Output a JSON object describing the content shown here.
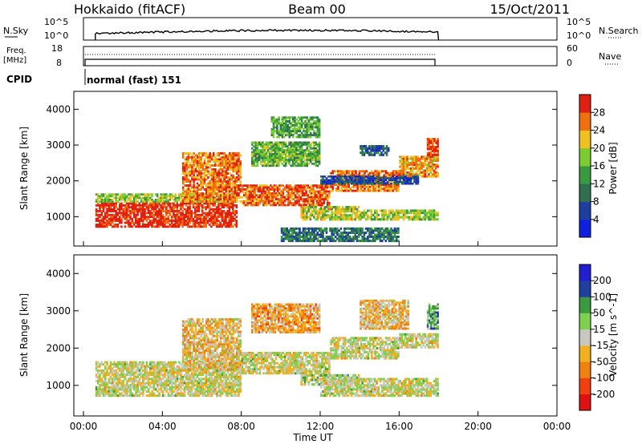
{
  "header": {
    "title_left": "Hokkaido (fitACF)",
    "title_center": "Beam 00",
    "title_right": "15/Oct/2011"
  },
  "sky_panel": {
    "label_left": "N.Sky",
    "label_right": "N.Search",
    "tick_top_left": "10^5",
    "tick_bottom_left": "10^0",
    "tick_top_right": "10^5",
    "tick_bottom_right": "10^0"
  },
  "freq_panel": {
    "label_left_1": "Freq.",
    "label_left_2": "[MHz]",
    "label_right": "Nave",
    "tick_top_left": "18",
    "tick_bottom_left": "8",
    "tick_top_right": "60",
    "tick_bottom_right": "0"
  },
  "cpid": {
    "label": "CPID",
    "value": "normal (fast) 151"
  },
  "x_axis": {
    "label": "Time UT",
    "ticks": [
      "00:00",
      "04:00",
      "08:00",
      "12:00",
      "16:00",
      "20:00",
      "00:00"
    ]
  },
  "colors": {
    "power_scale": [
      "#1020e0",
      "#1f3fa0",
      "#2f7050",
      "#3a9a40",
      "#7ccc30",
      "#f0c020",
      "#f07010",
      "#e02010"
    ],
    "velocity_scale": [
      "#e01010",
      "#f04010",
      "#f08010",
      "#f0b020",
      "#c8c8c0",
      "#80d050",
      "#3a9a40",
      "#2040a0",
      "#2020d0"
    ]
  },
  "chart_data": [
    {
      "type": "heatmap",
      "panel": "power",
      "ylabel": "Slant Range [km]",
      "xlabel": "",
      "x_range_hours": [
        0,
        24
      ],
      "ylim": [
        180,
        4500
      ],
      "yticks": [
        "1000",
        "2000",
        "3000",
        "4000"
      ],
      "colorbar_label": "Power [dB]",
      "colorbar_ticks": [
        "4",
        "8",
        "12",
        "16",
        "20",
        "24",
        "28"
      ],
      "regions": [
        {
          "t0": 0.6,
          "t1": 7.8,
          "r0": 700,
          "r1": 1400,
          "level": 0.95
        },
        {
          "t0": 0.6,
          "t1": 7.8,
          "r0": 1400,
          "r1": 1650,
          "level": 0.55
        },
        {
          "t0": 5.0,
          "t1": 8.0,
          "r0": 1400,
          "r1": 2800,
          "level": 0.8
        },
        {
          "t0": 8.0,
          "t1": 12.5,
          "r0": 1300,
          "r1": 1900,
          "level": 0.85
        },
        {
          "t0": 12.5,
          "t1": 16.0,
          "r0": 1700,
          "r1": 2300,
          "level": 0.8
        },
        {
          "t0": 16.0,
          "t1": 18.0,
          "r0": 2100,
          "r1": 2700,
          "level": 0.75
        },
        {
          "t0": 17.4,
          "t1": 18.0,
          "r0": 2700,
          "r1": 3200,
          "level": 0.9
        },
        {
          "t0": 8.5,
          "t1": 12.0,
          "r0": 2400,
          "r1": 3100,
          "level": 0.5
        },
        {
          "t0": 9.5,
          "t1": 12.0,
          "r0": 3200,
          "r1": 3800,
          "level": 0.45
        },
        {
          "t0": 14.0,
          "t1": 15.5,
          "r0": 2700,
          "r1": 3000,
          "level": 0.25
        },
        {
          "t0": 11.0,
          "t1": 14.0,
          "r0": 900,
          "r1": 1300,
          "level": 0.6
        },
        {
          "t0": 14.0,
          "t1": 18.0,
          "r0": 900,
          "r1": 1200,
          "level": 0.55
        },
        {
          "t0": 12.0,
          "t1": 17.0,
          "r0": 1900,
          "r1": 2150,
          "level": 0.2
        },
        {
          "t0": 10.0,
          "t1": 16.0,
          "r0": 300,
          "r1": 700,
          "level": 0.3
        }
      ]
    },
    {
      "type": "heatmap",
      "panel": "velocity",
      "ylabel": "Slant Range [km]",
      "xlabel": "Time UT",
      "x_range_hours": [
        0,
        24
      ],
      "ylim": [
        180,
        4500
      ],
      "yticks": [
        "1000",
        "2000",
        "3000",
        "4000"
      ],
      "colorbar_label": "Velocity [m s^-1]",
      "colorbar_ticks": [
        "-200",
        "-100",
        "-50",
        "-15",
        "15",
        "50",
        "100",
        "200"
      ],
      "regions": [
        {
          "t0": 0.6,
          "t1": 8.0,
          "r0": 700,
          "r1": 1650,
          "level": 0.5
        },
        {
          "t0": 5.0,
          "t1": 8.0,
          "r0": 1400,
          "r1": 2800,
          "level": 0.42
        },
        {
          "t0": 8.0,
          "t1": 12.5,
          "r0": 1300,
          "r1": 1900,
          "level": 0.5
        },
        {
          "t0": 12.5,
          "t1": 16.0,
          "r0": 1700,
          "r1": 2300,
          "level": 0.5
        },
        {
          "t0": 16.0,
          "t1": 18.0,
          "r0": 2000,
          "r1": 2400,
          "level": 0.5
        },
        {
          "t0": 17.4,
          "t1": 18.0,
          "r0": 2500,
          "r1": 3200,
          "level": 0.65
        },
        {
          "t0": 8.5,
          "t1": 12.0,
          "r0": 2400,
          "r1": 3200,
          "level": 0.35
        },
        {
          "t0": 11.0,
          "t1": 14.0,
          "r0": 1000,
          "r1": 1300,
          "level": 0.55
        },
        {
          "t0": 12.0,
          "t1": 18.0,
          "r0": 700,
          "r1": 1200,
          "level": 0.5
        },
        {
          "t0": 14.0,
          "t1": 16.5,
          "r0": 2500,
          "r1": 3300,
          "level": 0.4
        }
      ]
    }
  ]
}
